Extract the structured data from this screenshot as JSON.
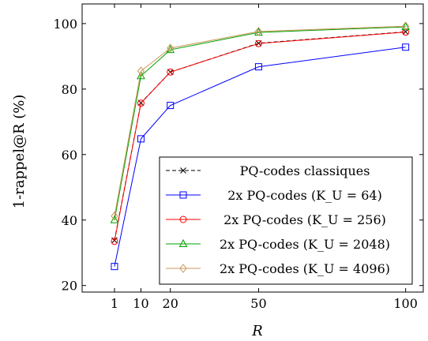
{
  "chart_data": {
    "type": "line",
    "title": "",
    "xlabel": "R",
    "ylabel": "1-rappel@R (%)",
    "x": [
      1,
      10,
      20,
      50,
      100
    ],
    "xticks": [
      1,
      10,
      20,
      50,
      100
    ],
    "yticks": [
      20,
      40,
      60,
      80,
      100
    ],
    "xlim": [
      -10,
      106
    ],
    "ylim": [
      18,
      106
    ],
    "grid": false,
    "legend_position": "bottom-right",
    "series": [
      {
        "name": "PQ-codes classiques",
        "color": "#000000",
        "dash": true,
        "marker": "x",
        "values": [
          33.8,
          75.8,
          85.2,
          94.0,
          97.5
        ]
      },
      {
        "name": "2x PQ-codes (K_U = 64)",
        "color": "#0000ff",
        "dash": false,
        "marker": "square",
        "values": [
          25.8,
          64.8,
          75.0,
          86.8,
          92.8
        ]
      },
      {
        "name": "2x PQ-codes (K_U = 256)",
        "color": "#ff0000",
        "dash": false,
        "marker": "circle",
        "values": [
          33.5,
          75.7,
          85.2,
          93.9,
          97.4
        ]
      },
      {
        "name": "2x PQ-codes (K_U = 2048)",
        "color": "#00a000",
        "dash": false,
        "marker": "triangle",
        "values": [
          40.0,
          84.0,
          92.0,
          97.3,
          99.0
        ]
      },
      {
        "name": "2x PQ-codes (K_U = 4096)",
        "color": "#c89858",
        "dash": false,
        "marker": "diamond",
        "values": [
          41.2,
          85.5,
          92.5,
          97.6,
          99.2
        ]
      }
    ]
  }
}
